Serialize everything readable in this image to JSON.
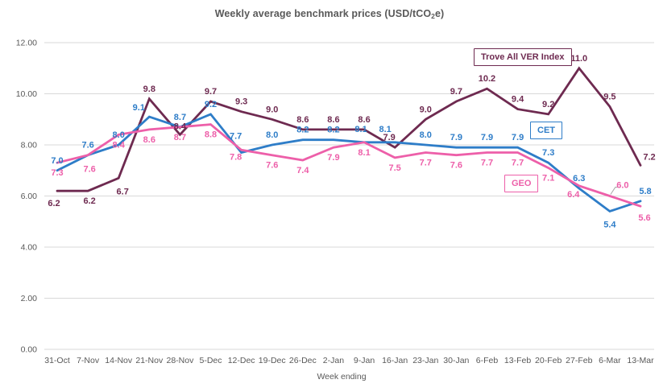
{
  "chart_title": {
    "prefix": "Weekly average benchmark prices (USD/tCO",
    "subscript": "2",
    "suffix": "e)"
  },
  "chart_data": {
    "type": "line",
    "title": "Weekly average benchmark prices (USD/tCO2e)",
    "xlabel": "Week ending",
    "ylabel": "",
    "ylim": [
      0,
      12
    ],
    "grid": true,
    "legend_position": "floating-boxes-inside-plot",
    "y_ticks": [
      0,
      2,
      4,
      6,
      8,
      10,
      12
    ],
    "y_tick_labels": [
      "0.00",
      "2.00",
      "4.00",
      "6.00",
      "8.00",
      "10.00",
      "12.00"
    ],
    "categories": [
      "31-Oct",
      "7-Nov",
      "14-Nov",
      "21-Nov",
      "28-Nov",
      "5-Dec",
      "12-Dec",
      "19-Dec",
      "26-Dec",
      "2-Jan",
      "9-Jan",
      "16-Jan",
      "23-Jan",
      "30-Jan",
      "6-Feb",
      "13-Feb",
      "20-Feb",
      "27-Feb",
      "6-Mar",
      "13-Mar"
    ],
    "series": [
      {
        "name": "Trove All VER Index",
        "color": "#6E2A50",
        "values": [
          6.2,
          6.2,
          6.7,
          9.8,
          8.4,
          9.7,
          9.3,
          9.0,
          8.6,
          8.6,
          8.6,
          7.9,
          9.0,
          9.7,
          10.2,
          9.4,
          9.2,
          11.0,
          9.5,
          7.2
        ],
        "label_default": [
          0,
          -9
        ],
        "label_overrides": {
          "0": [
            -4,
            19
          ],
          "1": [
            2,
            16
          ],
          "2": [
            5,
            20
          ],
          "4": [
            0,
            -7
          ],
          "11": [
            -7,
            -9
          ],
          "19": [
            11,
            -7
          ]
        }
      },
      {
        "name": "CET",
        "color": "#2E7DC8",
        "values": [
          7.0,
          7.6,
          8.0,
          9.1,
          8.7,
          9.2,
          7.7,
          8.0,
          8.2,
          8.2,
          8.1,
          8.1,
          8.0,
          7.9,
          7.9,
          7.9,
          7.3,
          6.3,
          5.4,
          5.8
        ],
        "label_default": [
          0,
          -9
        ],
        "label_overrides": {
          "3": [
            -13,
            -8
          ],
          "6": [
            -7,
            -17
          ],
          "10": [
            -4,
            -13
          ],
          "11": [
            -12,
            -13
          ],
          "18": [
            0,
            20
          ],
          "19": [
            6,
            -9
          ]
        }
      },
      {
        "name": "GEO",
        "color": "#ED5FA9",
        "values": [
          7.3,
          7.6,
          8.4,
          8.6,
          8.7,
          8.8,
          7.8,
          7.6,
          7.4,
          7.9,
          8.1,
          7.5,
          7.7,
          7.6,
          7.7,
          7.7,
          7.1,
          6.4,
          6.0,
          5.6
        ],
        "label_default": [
          0,
          16
        ],
        "label_overrides": {
          "1": [
            2,
            21
          ],
          "6": [
            -7,
            12
          ],
          "17": [
            -7,
            14
          ],
          "18": [
            16,
            -10
          ],
          "19": [
            5,
            18
          ]
        }
      }
    ],
    "callout": {
      "series_index": 2,
      "point_index": 18,
      "note": "leader line to 6.0 label"
    }
  },
  "x_axis": {
    "title": "Week ending"
  },
  "colors": {
    "gridline": "#D9D9D9",
    "axis_text": "#595959",
    "leader_line": "#A6A6A6",
    "background": "#FFFFFF"
  }
}
